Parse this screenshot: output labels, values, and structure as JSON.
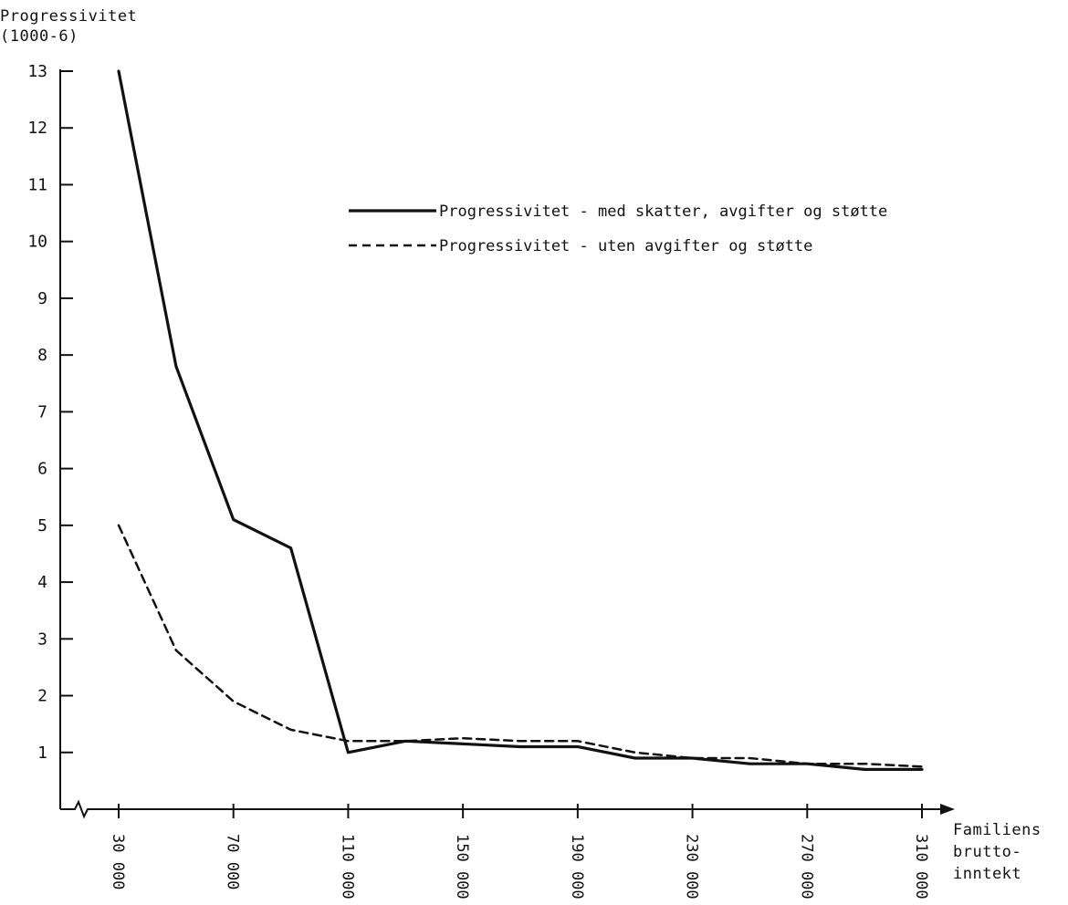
{
  "chart_data": {
    "type": "line",
    "ylabel_line1": "Progressivitet",
    "ylabel_line2": "(1000-6)",
    "xlabel_line1": "Familiens",
    "xlabel_line2": "brutto-",
    "xlabel_line3": "inntekt",
    "ylim": [
      0,
      13
    ],
    "xlim": [
      30000,
      310000
    ],
    "yticks": [
      1,
      2,
      3,
      4,
      5,
      6,
      7,
      8,
      9,
      10,
      11,
      12,
      13
    ],
    "xticks": [
      30000,
      70000,
      110000,
      150000,
      190000,
      230000,
      270000,
      310000
    ],
    "xtick_labels": [
      "30 000",
      "70 000",
      "110 000",
      "150 000",
      "190 000",
      "230 000",
      "270 000",
      "310 000"
    ],
    "grid": false,
    "legend_position": "upper-right",
    "series": [
      {
        "name": "Progressivitet - med skatter, avgifter og støtte",
        "style": "solid",
        "x": [
          30000,
          50000,
          70000,
          90000,
          110000,
          130000,
          150000,
          170000,
          190000,
          210000,
          230000,
          250000,
          270000,
          290000,
          310000
        ],
        "values": [
          13.0,
          7.8,
          5.1,
          4.6,
          1.0,
          1.2,
          1.15,
          1.1,
          1.1,
          0.9,
          0.9,
          0.8,
          0.8,
          0.7,
          0.7
        ]
      },
      {
        "name": "Progressivitet - uten avgifter og støtte",
        "style": "dashed",
        "x": [
          30000,
          50000,
          70000,
          90000,
          110000,
          130000,
          150000,
          170000,
          190000,
          210000,
          230000,
          250000,
          270000,
          290000,
          310000
        ],
        "values": [
          5.0,
          2.8,
          1.9,
          1.4,
          1.2,
          1.2,
          1.25,
          1.2,
          1.2,
          1.0,
          0.9,
          0.9,
          0.8,
          0.8,
          0.75
        ]
      }
    ]
  }
}
